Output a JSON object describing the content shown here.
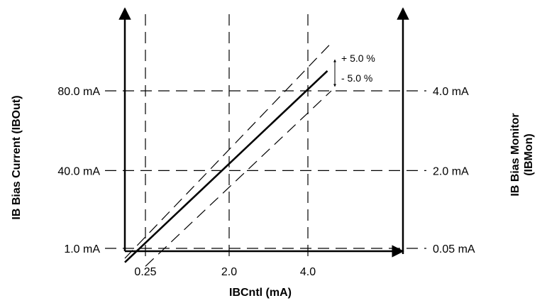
{
  "chart_data": {
    "type": "line",
    "x_axis": {
      "title": "IBCntl (mA)",
      "ticks": [
        {
          "value": 0.25,
          "label": "0.25"
        },
        {
          "value": 2.0,
          "label": "2.0"
        },
        {
          "value": 4.0,
          "label": "4.0"
        }
      ]
    },
    "y_axis_left": {
      "title": "IB Bias Current (IBOut)",
      "ticks": [
        {
          "value": 1.0,
          "label": "1.0 mA"
        },
        {
          "value": 40.0,
          "label": "40.0 mA"
        },
        {
          "value": 80.0,
          "label": "80.0 mA"
        }
      ]
    },
    "y_axis_right": {
      "title_lines": [
        "IB Bias Monitor",
        "(IBMon)"
      ],
      "ticks": [
        {
          "value": 0.05,
          "label": "0.05 mA"
        },
        {
          "value": 2.0,
          "label": "2.0 mA"
        },
        {
          "value": 4.0,
          "label": "4.0 mA"
        }
      ]
    },
    "series": [
      {
        "style": "solid",
        "points": [
          {
            "x": 0.0,
            "y": -6.0
          },
          {
            "x": 4.5,
            "y": 90.0
          }
        ]
      },
      {
        "style": "dashed",
        "points": [
          {
            "x": 0.0,
            "y": -4.0
          },
          {
            "x": 4.6,
            "y": 104.0
          }
        ]
      },
      {
        "style": "dashed",
        "points": [
          {
            "x": 0.25,
            "y": -8.0
          },
          {
            "x": 4.6,
            "y": 80.0
          }
        ]
      }
    ],
    "annotations": {
      "plus": "+ 5.0 %",
      "minus": "- 5.0 %"
    }
  }
}
